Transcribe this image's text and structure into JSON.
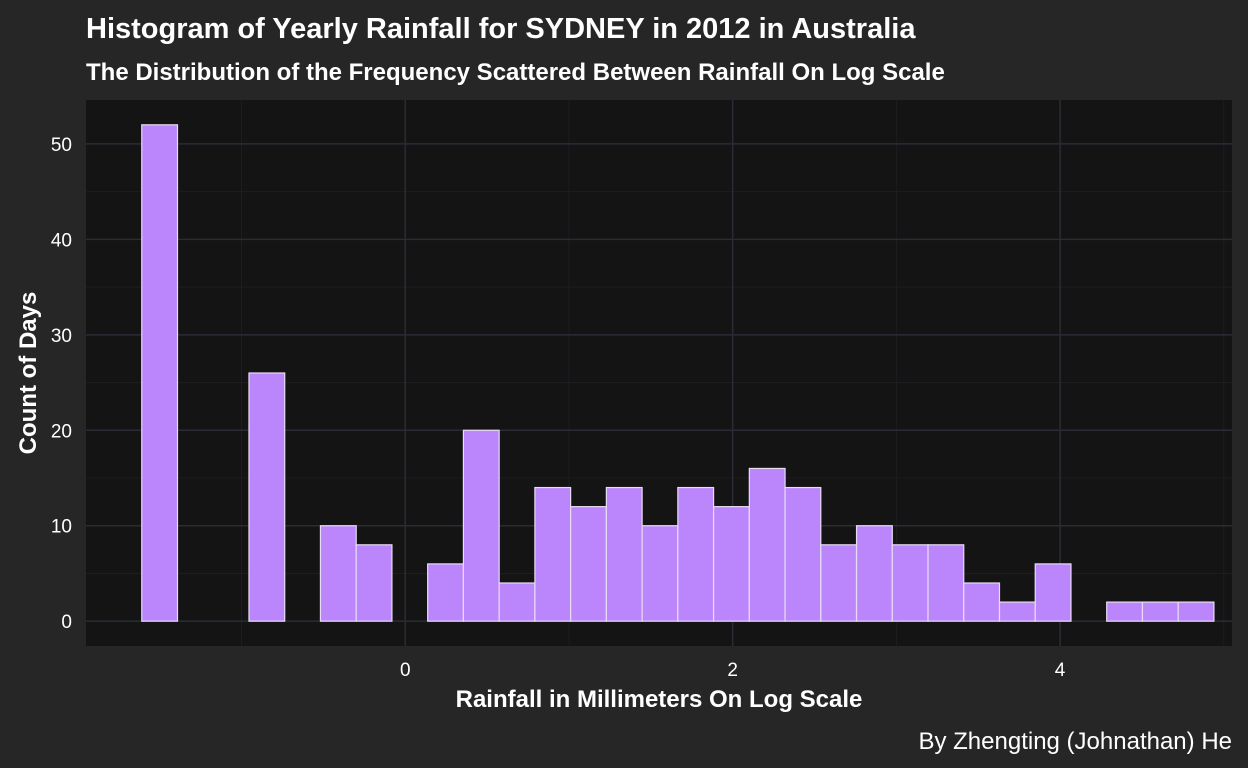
{
  "chart_data": {
    "type": "bar",
    "subtype": "histogram",
    "title": "Histogram of Yearly Rainfall for SYDNEY in 2012 in Australia",
    "subtitle": "The Distribution of the Frequency Scattered Between Rainfall On Log Scale",
    "xlabel": "Rainfall in Millimeters On Log Scale",
    "ylabel": "Count of Days",
    "caption": "By Zhengting (Johnathan) He",
    "xlim": [
      -1.95,
      5.05
    ],
    "ylim": [
      -2.6,
      54.6
    ],
    "x_ticks": [
      0,
      2,
      4
    ],
    "y_ticks": [
      0,
      10,
      20,
      30,
      40,
      50
    ],
    "x_scale": "log (natural log of millimeters)",
    "bin_start": -1.6094,
    "bin_width": 0.2183,
    "values": [
      52,
      0,
      0,
      26,
      0,
      10,
      8,
      0,
      6,
      20,
      4,
      14,
      12,
      14,
      10,
      14,
      12,
      16,
      14,
      8,
      10,
      8,
      8,
      4,
      2,
      6,
      0,
      2,
      2,
      2
    ],
    "grid": true,
    "legend": "none",
    "colors": {
      "background": "#262626",
      "panel": "#141414",
      "grid_major": "#2b2b36",
      "grid_minor": "#1d1d22",
      "bar_fill": "#bb86fc",
      "bar_outline": "#e8dcf5",
      "text": "#ffffff"
    }
  }
}
